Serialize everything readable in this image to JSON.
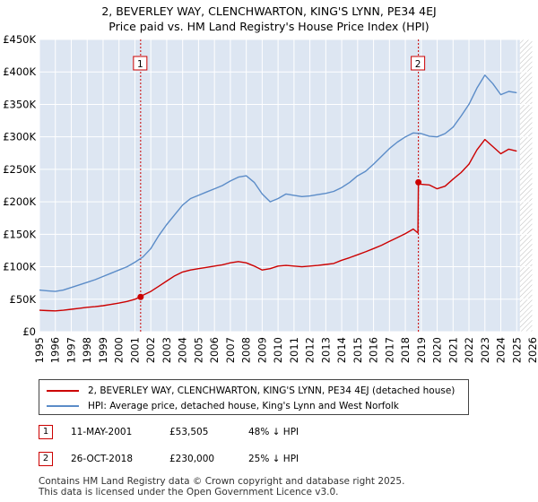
{
  "title": {
    "line1": "2, BEVERLEY WAY, CLENCHWARTON, KING'S LYNN, PE34 4EJ",
    "line2": "Price paid vs. HM Land Registry's House Price Index (HPI)"
  },
  "colors": {
    "property": "#cc0000",
    "hpi": "#5b8cc8",
    "plot_bg": "#dde6f2",
    "future_hatch": "#aaaaaa",
    "marker_line": "#cc0000"
  },
  "legend": {
    "property_label": "2, BEVERLEY WAY, CLENCHWARTON, KING'S LYNN, PE34 4EJ (detached house)",
    "hpi_label": "HPI: Average price, detached house, King's Lynn and West Norfolk"
  },
  "annotations": [
    {
      "num": "1",
      "date": "11-MAY-2001",
      "price": "£53,505",
      "hpi_diff": "48% ↓ HPI"
    },
    {
      "num": "2",
      "date": "26-OCT-2018",
      "price": "£230,000",
      "hpi_diff": "25% ↓ HPI"
    }
  ],
  "footer": {
    "line1": "Contains HM Land Registry data © Crown copyright and database right 2025.",
    "line2": "This data is licensed under the Open Government Licence v3.0."
  },
  "chart_data": {
    "type": "line",
    "title": "2, BEVERLEY WAY, CLENCHWARTON, KING'S LYNN, PE34 4EJ",
    "subtitle": "Price paid vs. HM Land Registry's House Price Index (HPI)",
    "xlim": [
      1995,
      2026
    ],
    "ylim": [
      0,
      450000
    ],
    "x_ticks": [
      1995,
      1996,
      1997,
      1998,
      1999,
      2000,
      2001,
      2002,
      2003,
      2004,
      2005,
      2006,
      2007,
      2008,
      2009,
      2010,
      2011,
      2012,
      2013,
      2014,
      2015,
      2016,
      2017,
      2018,
      2019,
      2020,
      2021,
      2022,
      2023,
      2024,
      2025,
      2026
    ],
    "y_ticks": [
      {
        "value": 0,
        "label": "£0"
      },
      {
        "value": 50000,
        "label": "£50K"
      },
      {
        "value": 100000,
        "label": "£100K"
      },
      {
        "value": 150000,
        "label": "£150K"
      },
      {
        "value": 200000,
        "label": "£200K"
      },
      {
        "value": 250000,
        "label": "£250K"
      },
      {
        "value": 300000,
        "label": "£300K"
      },
      {
        "value": 350000,
        "label": "£350K"
      },
      {
        "value": 400000,
        "label": "£400K"
      },
      {
        "value": 450000,
        "label": "£450K"
      }
    ],
    "grid": true,
    "legend_position": "bottom",
    "future_from": 2025.2,
    "series": [
      {
        "name": "2, BEVERLEY WAY, CLENCHWARTON, KING'S LYNN, PE34 4EJ (detached house)",
        "color": "#cc0000",
        "x": [
          1995.0,
          1995.5,
          1996.0,
          1996.5,
          1997.0,
          1997.5,
          1998.0,
          1998.5,
          1999.0,
          1999.5,
          2000.0,
          2000.5,
          2001.0,
          2001.36,
          2001.5,
          2002.0,
          2002.5,
          2003.0,
          2003.5,
          2004.0,
          2004.5,
          2005.0,
          2005.5,
          2006.0,
          2006.5,
          2007.0,
          2007.5,
          2008.0,
          2008.5,
          2009.0,
          2009.5,
          2010.0,
          2010.5,
          2011.0,
          2011.5,
          2012.0,
          2012.5,
          2013.0,
          2013.5,
          2014.0,
          2014.5,
          2015.0,
          2015.5,
          2016.0,
          2016.5,
          2017.0,
          2017.5,
          2018.0,
          2018.5,
          2018.79,
          2018.82,
          2019.0,
          2019.5,
          2020.0,
          2020.5,
          2021.0,
          2021.5,
          2022.0,
          2022.5,
          2023.0,
          2023.5,
          2024.0,
          2024.5,
          2025.0
        ],
        "values": [
          33000,
          32500,
          32000,
          33000,
          34500,
          36000,
          37500,
          38500,
          40000,
          42000,
          44000,
          46500,
          50000,
          53505,
          56000,
          62000,
          70000,
          78000,
          86000,
          92000,
          95000,
          97000,
          99000,
          101000,
          103000,
          106000,
          108000,
          106000,
          101000,
          95000,
          97000,
          101000,
          102000,
          101000,
          100000,
          101000,
          102000,
          103500,
          105000,
          110000,
          114000,
          118500,
          123000,
          128000,
          133000,
          139000,
          145000,
          151000,
          158000,
          152000,
          230000,
          227000,
          226000,
          220000,
          224000,
          235000,
          245000,
          258000,
          280000,
          296000,
          285000,
          274000,
          281000,
          278000
        ]
      },
      {
        "name": "HPI: Average price, detached house, King's Lynn and West Norfolk",
        "color": "#5b8cc8",
        "x": [
          1995.0,
          1995.5,
          1996.0,
          1996.5,
          1997.0,
          1997.5,
          1998.0,
          1998.5,
          1999.0,
          1999.5,
          2000.0,
          2000.5,
          2001.0,
          2001.5,
          2002.0,
          2002.5,
          2003.0,
          2003.5,
          2004.0,
          2004.5,
          2005.0,
          2005.5,
          2006.0,
          2006.5,
          2007.0,
          2007.5,
          2008.0,
          2008.5,
          2009.0,
          2009.5,
          2010.0,
          2010.5,
          2011.0,
          2011.5,
          2012.0,
          2012.5,
          2013.0,
          2013.5,
          2014.0,
          2014.5,
          2015.0,
          2015.5,
          2016.0,
          2016.5,
          2017.0,
          2017.5,
          2018.0,
          2018.5,
          2019.0,
          2019.5,
          2020.0,
          2020.5,
          2021.0,
          2021.5,
          2022.0,
          2022.5,
          2023.0,
          2023.5,
          2024.0,
          2024.5,
          2025.0
        ],
        "values": [
          64000,
          63000,
          62000,
          64000,
          68000,
          72000,
          76000,
          80000,
          85000,
          90000,
          95000,
          100000,
          107000,
          115000,
          128000,
          148000,
          165000,
          180000,
          195000,
          205000,
          210000,
          215000,
          220000,
          225000,
          232000,
          238000,
          240000,
          230000,
          212000,
          200000,
          205000,
          212000,
          210000,
          208000,
          209000,
          211000,
          213000,
          216000,
          222000,
          230000,
          240000,
          247000,
          258000,
          270000,
          282000,
          292000,
          300000,
          306000,
          305000,
          301000,
          300000,
          305000,
          315000,
          332000,
          350000,
          375000,
          395000,
          382000,
          365000,
          370000,
          368000
        ]
      }
    ],
    "markers": [
      {
        "label": "1",
        "x": 2001.36,
        "y": 53505
      },
      {
        "label": "2",
        "x": 2018.82,
        "y": 230000
      }
    ]
  }
}
